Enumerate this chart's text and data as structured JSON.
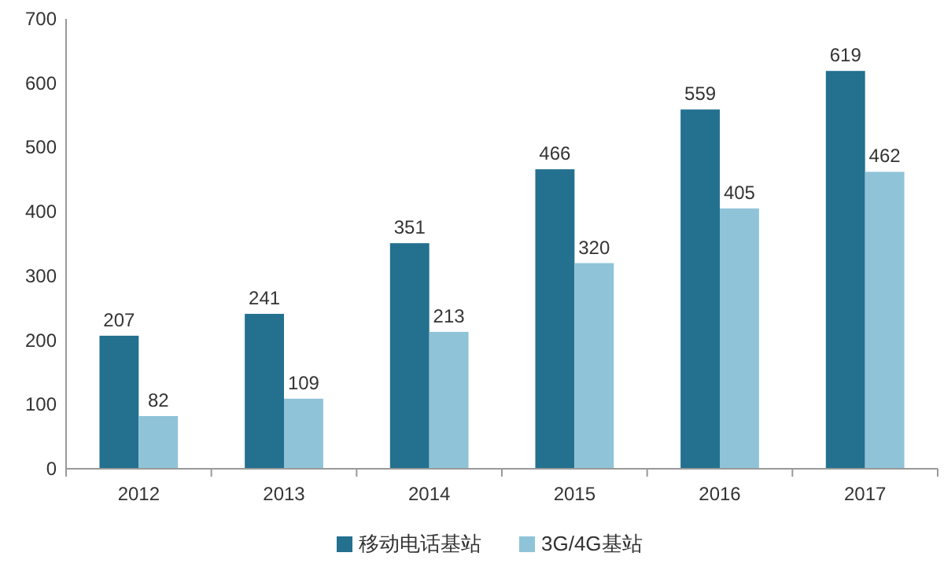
{
  "chart_data": {
    "type": "bar",
    "categories": [
      "2012",
      "2013",
      "2014",
      "2015",
      "2016",
      "2017"
    ],
    "series": [
      {
        "name": "移动电话基站",
        "color": "#23708f",
        "values": [
          207,
          241,
          351,
          466,
          559,
          619
        ]
      },
      {
        "name": "3G/4G基站",
        "color": "#8fc3d8",
        "values": [
          82,
          109,
          213,
          320,
          405,
          462
        ]
      }
    ],
    "ylim": [
      0,
      700
    ],
    "yticks": [
      0,
      100,
      200,
      300,
      400,
      500,
      600,
      700
    ],
    "data_labels": true,
    "legend": "bottom"
  }
}
